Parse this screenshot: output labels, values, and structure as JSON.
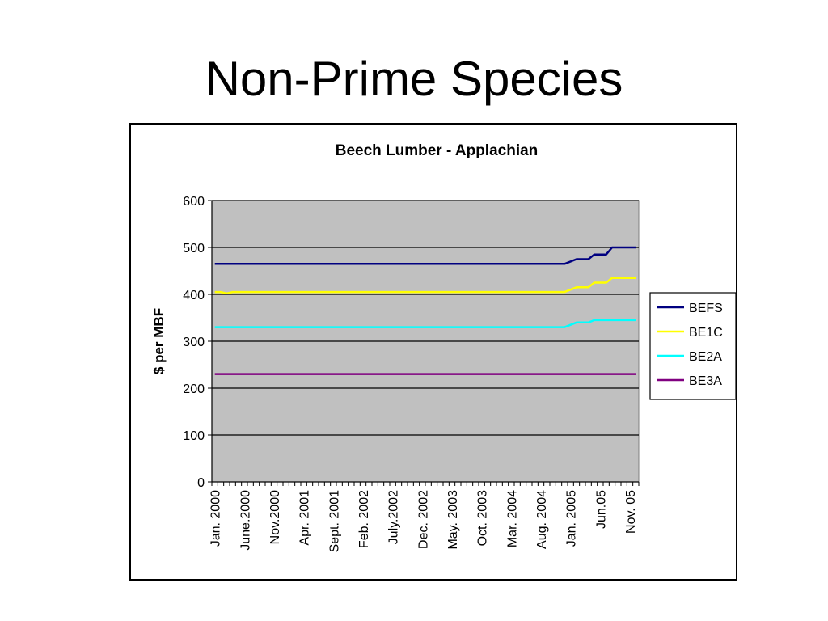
{
  "slide": {
    "title": "Non-Prime Species"
  },
  "colors": {
    "plot_background": "#c0c0c0",
    "gridline": "#000000",
    "BEFS": "#000080",
    "BE1C": "#ffff00",
    "BE2A": "#00ffff",
    "BE3A": "#800080"
  },
  "chart_data": {
    "type": "line",
    "title": "Beech Lumber - Applachian",
    "xlabel": "",
    "ylabel": "$ per MBF",
    "ylim": [
      0,
      600
    ],
    "yticks": [
      0,
      100,
      200,
      300,
      400,
      500,
      600
    ],
    "grid": "horizontal",
    "legend_position": "right",
    "x_tick_labels": [
      "Jan. 2000",
      "June.2000",
      "Nov.2000",
      "Apr. 2001",
      "Sept. 2001",
      "Feb. 2002",
      "July.2002",
      "Dec. 2002",
      "May. 2003",
      "Oct. 2003",
      "Mar. 2004",
      "Aug. 2004",
      "Jan. 2005",
      "Jun.05",
      "Nov. 05"
    ],
    "series": [
      {
        "name": "BEFS",
        "values": [
          {
            "date": "Jan. 2000",
            "value": 465
          },
          {
            "date": "Dec. 2004",
            "value": 465
          },
          {
            "date": "Feb. 2005",
            "value": 475
          },
          {
            "date": "Apr. 2005",
            "value": 475
          },
          {
            "date": "May. 2005",
            "value": 485
          },
          {
            "date": "Jul. 2005",
            "value": 485
          },
          {
            "date": "Aug. 2005",
            "value": 500
          },
          {
            "date": "Dec. 2005",
            "value": 500
          }
        ]
      },
      {
        "name": "BE1C",
        "values": [
          {
            "date": "Jan. 2000",
            "value": 405
          },
          {
            "date": "Feb. 2000",
            "value": 405
          },
          {
            "date": "Mar. 2000",
            "value": 402
          },
          {
            "date": "Apr. 2000",
            "value": 405
          },
          {
            "date": "Dec. 2004",
            "value": 405
          },
          {
            "date": "Feb. 2005",
            "value": 415
          },
          {
            "date": "Apr. 2005",
            "value": 415
          },
          {
            "date": "May. 2005",
            "value": 425
          },
          {
            "date": "Jul. 2005",
            "value": 425
          },
          {
            "date": "Aug. 2005",
            "value": 435
          },
          {
            "date": "Dec. 2005",
            "value": 435
          }
        ]
      },
      {
        "name": "BE2A",
        "values": [
          {
            "date": "Jan. 2000",
            "value": 330
          },
          {
            "date": "Dec. 2004",
            "value": 330
          },
          {
            "date": "Feb. 2005",
            "value": 340
          },
          {
            "date": "Apr. 2005",
            "value": 340
          },
          {
            "date": "May. 2005",
            "value": 345
          },
          {
            "date": "Dec. 2005",
            "value": 345
          }
        ]
      },
      {
        "name": "BE3A",
        "values": [
          {
            "date": "Jan. 2000",
            "value": 230
          },
          {
            "date": "Dec. 2005",
            "value": 230
          }
        ]
      }
    ]
  }
}
